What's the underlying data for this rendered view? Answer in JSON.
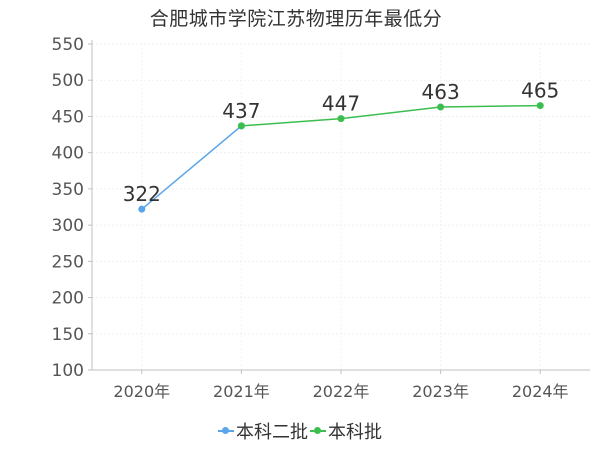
{
  "chart_data": {
    "type": "line",
    "title": "合肥城市学院江苏物理历年最低分",
    "categories": [
      "2020年",
      "2021年",
      "2022年",
      "2023年",
      "2024年"
    ],
    "series": [
      {
        "name": "本科二批",
        "color": "#5aa5ea",
        "values": [
          322,
          437,
          null,
          null,
          null
        ]
      },
      {
        "name": "本科批",
        "color": "#3cbe4e",
        "values": [
          null,
          437,
          447,
          463,
          465
        ]
      }
    ],
    "data_labels": [
      "322",
      "437",
      "447",
      "463",
      "465"
    ],
    "ylim": [
      100,
      550
    ],
    "yticks": [
      "100",
      "150",
      "200",
      "250",
      "300",
      "350",
      "400",
      "450",
      "500",
      "550"
    ],
    "grid": true,
    "legend_position": "bottom"
  }
}
